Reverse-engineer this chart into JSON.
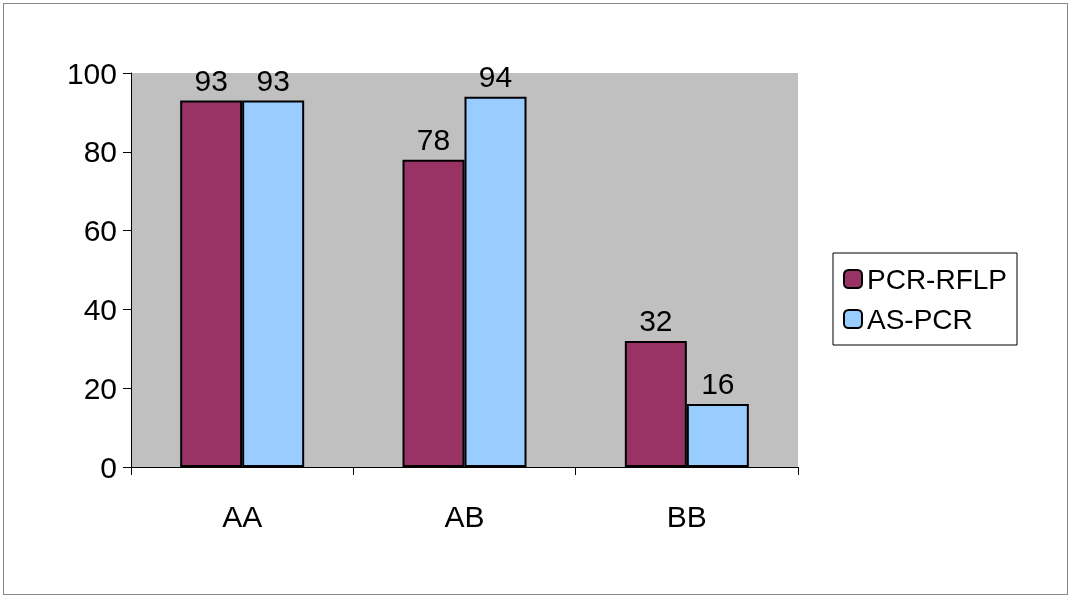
{
  "chart_data": {
    "type": "bar",
    "categories": [
      "AA",
      "AB",
      "BB"
    ],
    "series": [
      {
        "name": "PCR-RFLP",
        "color": "#993366",
        "values": [
          93,
          78,
          32
        ]
      },
      {
        "name": "AS-PCR",
        "color": "#99ccff",
        "values": [
          93,
          94,
          16
        ]
      }
    ],
    "ylim": [
      0,
      100
    ],
    "yticks": [
      0,
      20,
      40,
      60,
      80,
      100
    ],
    "data_labels": true,
    "legend": "right",
    "grid": false
  }
}
